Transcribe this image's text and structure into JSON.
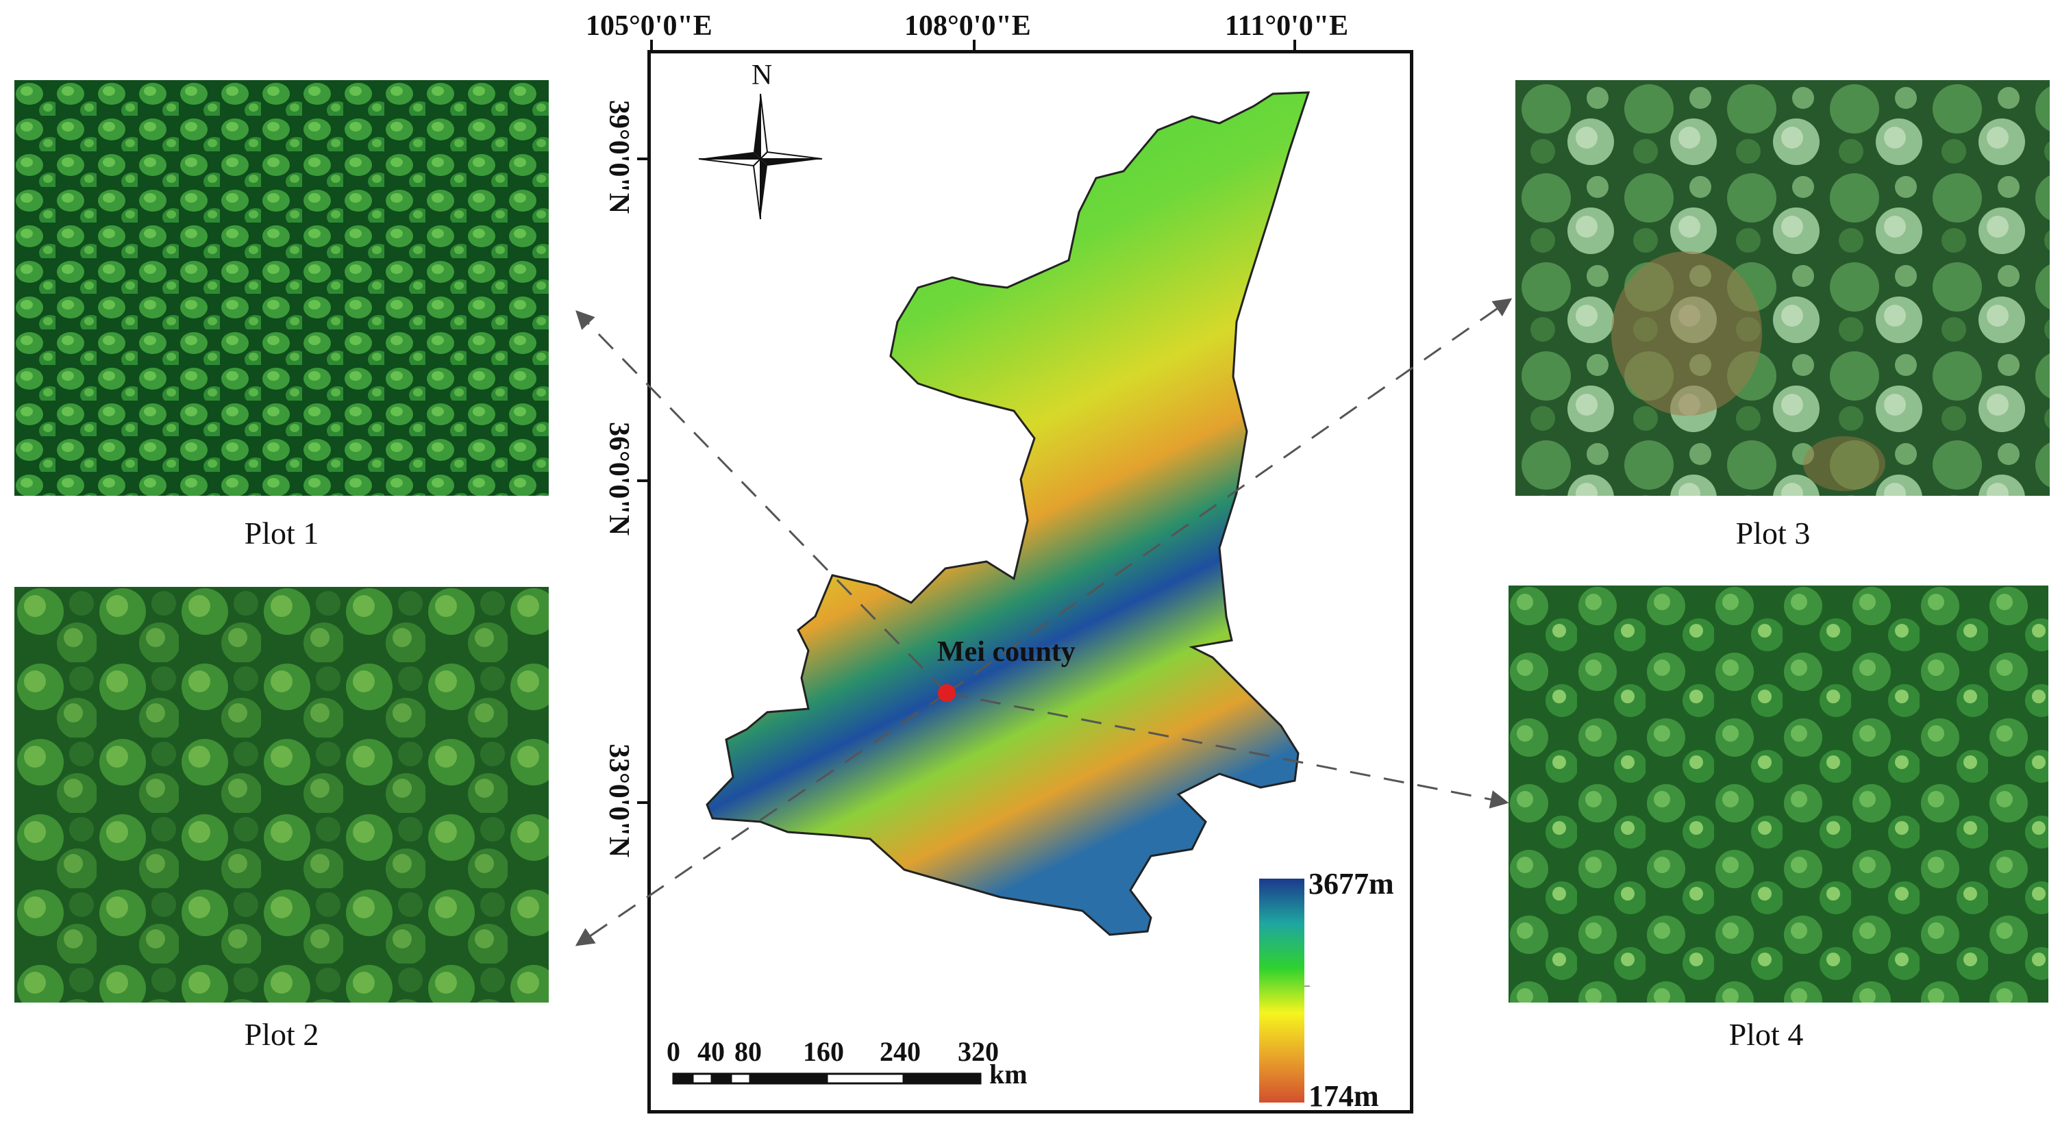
{
  "plots": [
    {
      "label": "Plot 1",
      "canopy": "dense-conifer"
    },
    {
      "label": "Plot 2",
      "canopy": "broadleaf"
    },
    {
      "label": "Plot 3",
      "canopy": "mixed-conifer"
    },
    {
      "label": "Plot 4",
      "canopy": "broadleaf-dense"
    }
  ],
  "map": {
    "lon_ticks": [
      "105°0'0\"E",
      "108°0'0\"E",
      "111°0'0\"E"
    ],
    "lat_ticks": [
      "39°0'0\"N",
      "36°0'0\"N",
      "33°0'0\"N"
    ],
    "north_label": "N",
    "county_label": "Mei county",
    "legend": {
      "max": "3677m",
      "min": "174m",
      "colors": [
        "#1b3a8c",
        "#1fa6a0",
        "#2fd22f",
        "#f5f51e",
        "#e8a22a",
        "#d2502e"
      ]
    },
    "scale": {
      "ticks": [
        "0",
        "40",
        "80",
        "160",
        "240",
        "320"
      ],
      "unit": "km"
    },
    "marker_color": "#e02020"
  }
}
